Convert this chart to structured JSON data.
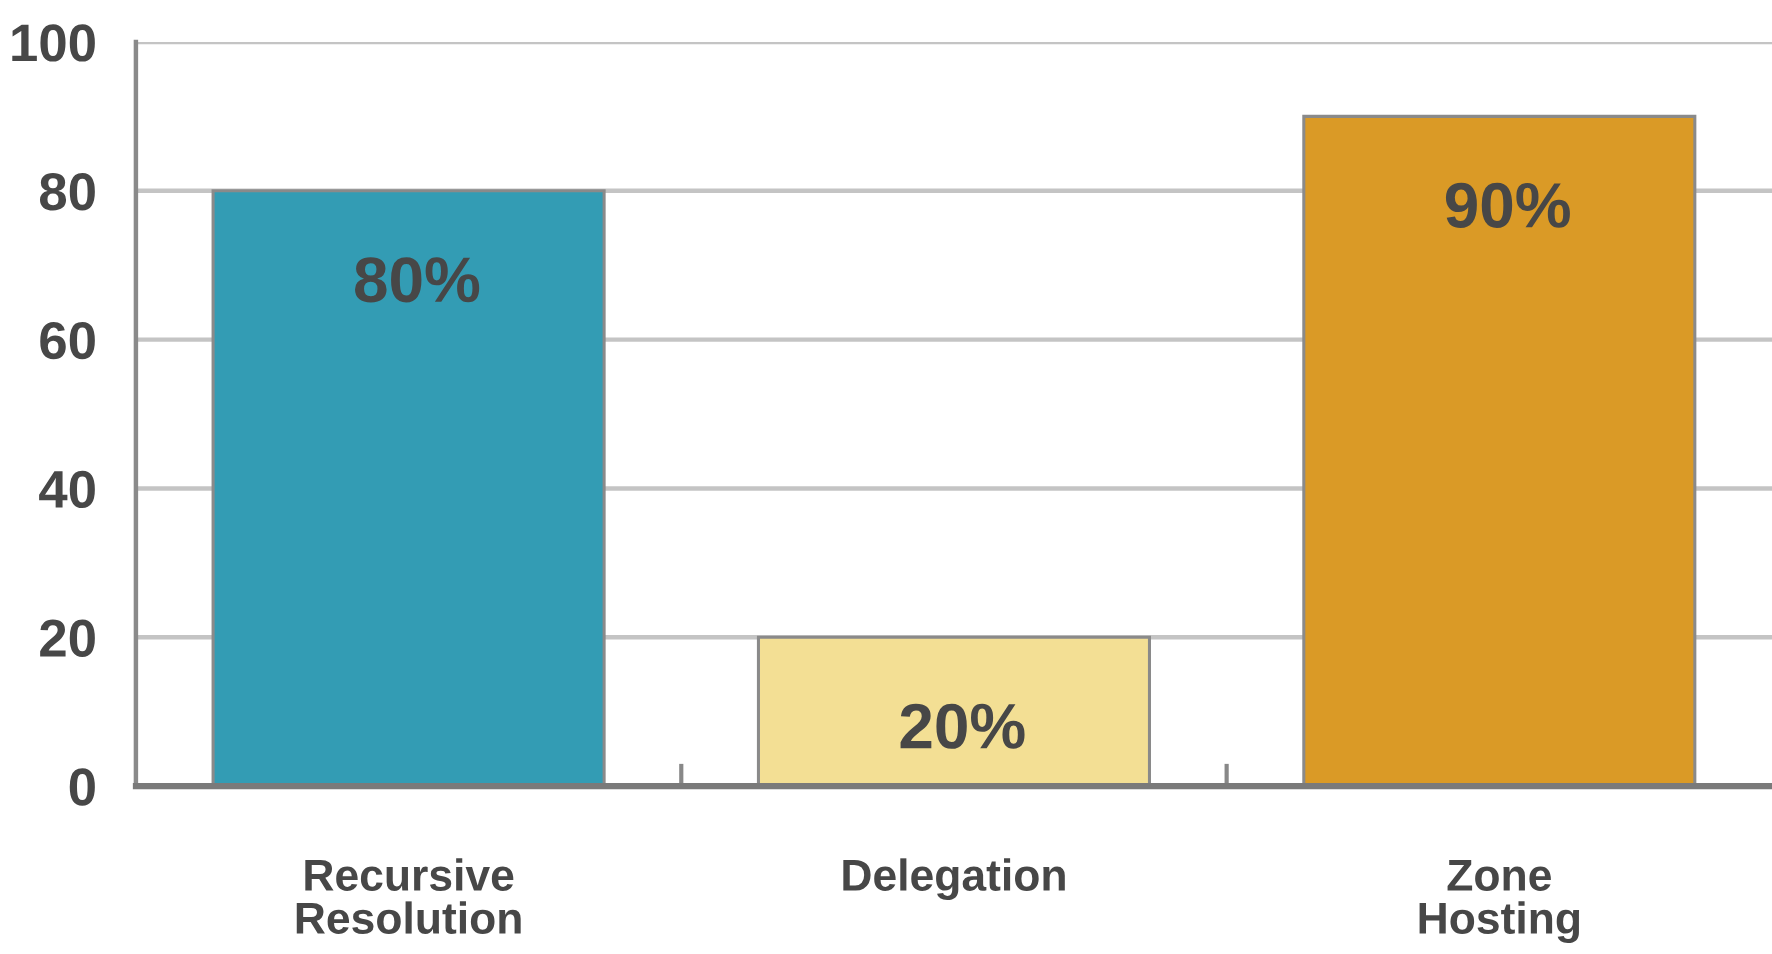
{
  "chart_data": {
    "type": "bar",
    "categories": [
      "Recursive Resolution",
      "Delegation",
      "Zone Hosting"
    ],
    "values": [
      80,
      20,
      90
    ],
    "colors": [
      "#339cb4",
      "#f3df94",
      "#da9a26"
    ],
    "value_labels": [
      "80%",
      "20%",
      "90%"
    ],
    "ylim": [
      0,
      100
    ],
    "yticks": [
      0,
      20,
      40,
      60,
      80,
      100
    ],
    "grid": "y"
  }
}
